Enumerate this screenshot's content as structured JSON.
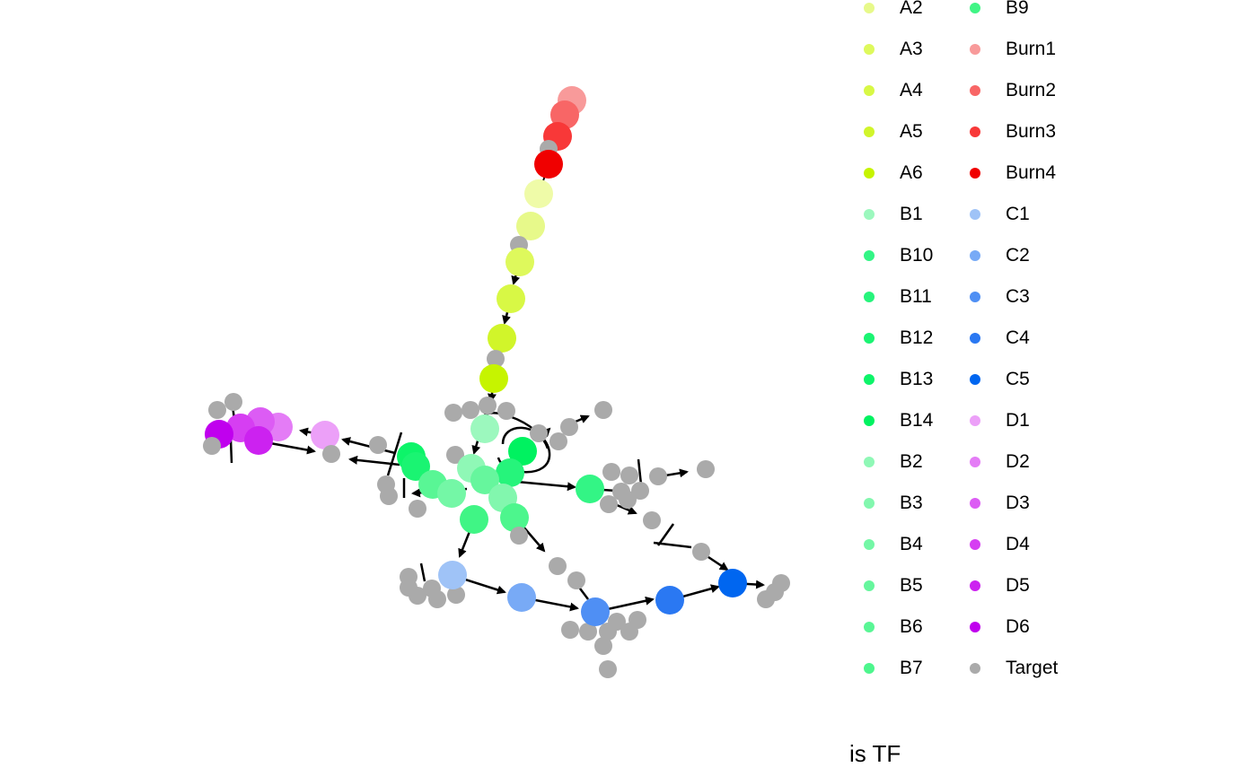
{
  "legend": {
    "items": [
      {
        "label": "A2",
        "color": "#E7F98A"
      },
      {
        "label": "A3",
        "color": "#DEF95C"
      },
      {
        "label": "A4",
        "color": "#D8F845"
      },
      {
        "label": "A5",
        "color": "#D1F52A"
      },
      {
        "label": "A6",
        "color": "#C6F400"
      },
      {
        "label": "B1",
        "color": "#9CF8BE"
      },
      {
        "label": "B10",
        "color": "#33F585"
      },
      {
        "label": "B11",
        "color": "#26F47B"
      },
      {
        "label": "B12",
        "color": "#1AF472"
      },
      {
        "label": "B13",
        "color": "#0DF469"
      },
      {
        "label": "B14",
        "color": "#00F260"
      },
      {
        "label": "B2",
        "color": "#8FF8B6"
      },
      {
        "label": "B3",
        "color": "#82F7AE"
      },
      {
        "label": "B4",
        "color": "#74F7A6"
      },
      {
        "label": "B5",
        "color": "#66F69D"
      },
      {
        "label": "B6",
        "color": "#59F695"
      },
      {
        "label": "B7",
        "color": "#4DF68D"
      },
      {
        "label": "B9",
        "color": "#40F585"
      },
      {
        "label": "Burn1",
        "color": "#F89A9A"
      },
      {
        "label": "Burn2",
        "color": "#F86666"
      },
      {
        "label": "Burn3",
        "color": "#F83838"
      },
      {
        "label": "Burn4",
        "color": "#F00000"
      },
      {
        "label": "C1",
        "color": "#9FC3F7"
      },
      {
        "label": "C2",
        "color": "#78AAF6"
      },
      {
        "label": "C3",
        "color": "#4F8FF4"
      },
      {
        "label": "C4",
        "color": "#2A78F2"
      },
      {
        "label": "C5",
        "color": "#0066F0"
      },
      {
        "label": "D1",
        "color": "#ECA0F8"
      },
      {
        "label": "D2",
        "color": "#E47CF6"
      },
      {
        "label": "D3",
        "color": "#DC5CF4"
      },
      {
        "label": "D4",
        "color": "#D63EF2"
      },
      {
        "label": "D5",
        "color": "#CC22F0"
      },
      {
        "label": "D6",
        "color": "#C000EE"
      },
      {
        "label": "Target",
        "color": "#AAAAAA"
      }
    ],
    "is_tf_title": "is TF"
  },
  "graph": {
    "edge_color": "#000000",
    "target_color": "#AAAAAA"
  }
}
